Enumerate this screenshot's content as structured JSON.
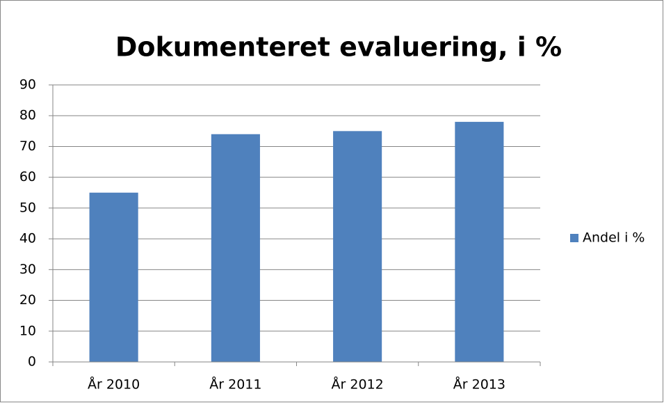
{
  "chart_data": {
    "type": "bar",
    "title": "Dokumenteret evaluering, i %",
    "categories": [
      "År 2010",
      "År 2011",
      "År 2012",
      "År 2013"
    ],
    "series": [
      {
        "name": "Andel i %",
        "color": "#4f81bd",
        "values": [
          55,
          74,
          75,
          78
        ]
      }
    ],
    "ylim": [
      0,
      90
    ],
    "yticks": [
      0,
      10,
      20,
      30,
      40,
      50,
      60,
      70,
      80,
      90
    ],
    "grid": true,
    "legend": "right"
  }
}
